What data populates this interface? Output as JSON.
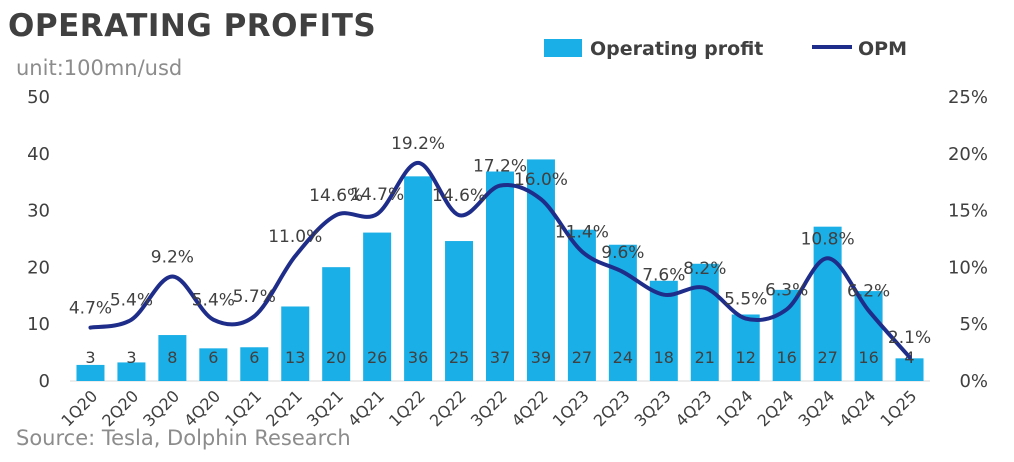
{
  "title": "OPERATING PROFITS",
  "unit": "unit:100mn/usd",
  "source": "Source: Tesla, Dolphin Research",
  "colors": {
    "bar": "#1aafe6",
    "line": "#1f2d8a",
    "text": "#404040",
    "muted": "#8c8c8c"
  },
  "chart_data": {
    "type": "bar",
    "categories": [
      "1Q20",
      "2Q20",
      "3Q20",
      "4Q20",
      "1Q21",
      "2Q21",
      "3Q21",
      "4Q21",
      "1Q22",
      "2Q22",
      "3Q22",
      "4Q22",
      "1Q23",
      "2Q23",
      "3Q23",
      "4Q23",
      "1Q24",
      "2Q24",
      "3Q24",
      "4Q24",
      "1Q25"
    ],
    "series": [
      {
        "name": "Operating profit",
        "type": "bar",
        "axis": "left",
        "values": [
          2.83,
          3.27,
          8.09,
          5.75,
          5.94,
          13.12,
          20.04,
          26.13,
          36.03,
          24.64,
          36.88,
          39.01,
          26.64,
          23.99,
          17.64,
          20.64,
          11.71,
          16.05,
          27.17,
          15.83,
          3.99
        ],
        "labels": [
          "3",
          "3",
          "8",
          "6",
          "6",
          "13",
          "20",
          "26",
          "36",
          "25",
          "37",
          "39",
          "27",
          "24",
          "18",
          "21",
          "12",
          "16",
          "27",
          "16",
          "4"
        ]
      },
      {
        "name": "OPM",
        "type": "line",
        "axis": "right",
        "values": [
          4.7,
          5.4,
          9.2,
          5.4,
          5.7,
          11.0,
          14.6,
          14.7,
          19.2,
          14.6,
          17.2,
          16.0,
          11.4,
          9.6,
          7.6,
          8.2,
          5.5,
          6.3,
          10.8,
          6.2,
          2.1
        ],
        "labels": [
          "4.7%",
          "5.4%",
          "9.2%",
          "5.4%",
          "5.7%",
          "11.0%",
          "14.6%",
          "14.7%",
          "19.2%",
          "14.6%",
          "17.2%",
          "16.0%",
          "11.4%",
          "9.6%",
          "7.6%",
          "8.2%",
          "5.5%",
          "6.3%",
          "10.8%",
          "6.2%",
          "2.1%"
        ]
      }
    ],
    "y_left": {
      "ylim": [
        0,
        50
      ],
      "ticks": [
        "0",
        "10",
        "20",
        "30",
        "40",
        "50"
      ]
    },
    "y_right": {
      "ylim": [
        0,
        25
      ],
      "ticks": [
        "0%",
        "5%",
        "10%",
        "15%",
        "20%",
        "25%"
      ]
    },
    "legend": [
      "Operating profit",
      "OPM"
    ],
    "grid": false
  }
}
